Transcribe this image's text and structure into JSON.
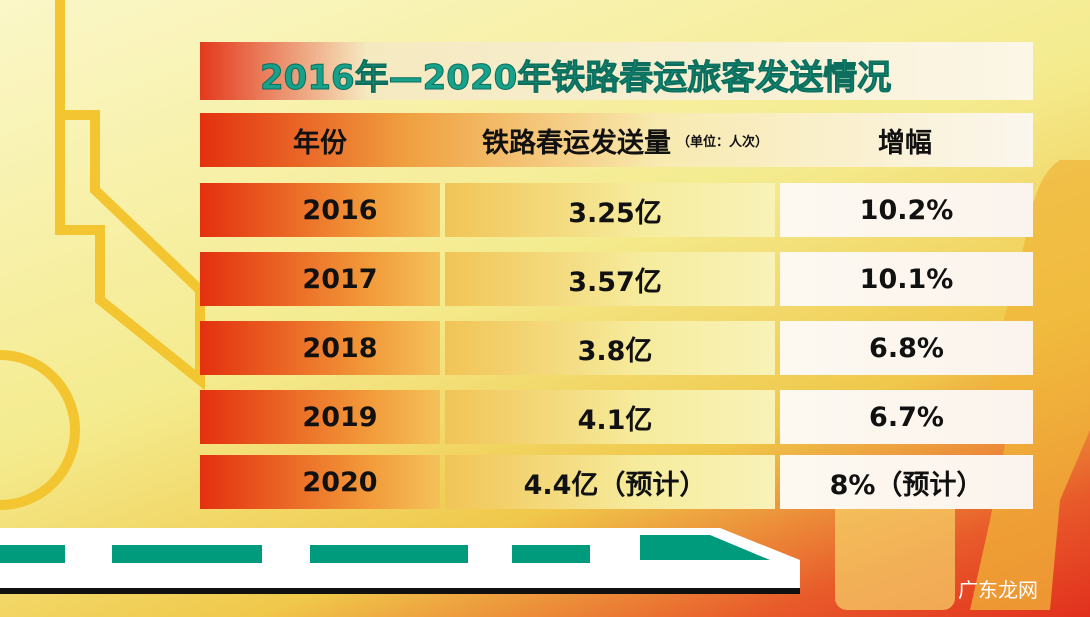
{
  "header": {
    "title": "2016年—2020年铁路春运旅客发送情况"
  },
  "table": {
    "columns": [
      "年份",
      "铁路春运发送量",
      "增幅"
    ],
    "unit_note": "（单位：人次）",
    "rows": [
      [
        "2016",
        "3.25亿",
        "10.2%"
      ],
      [
        "2017",
        "3.57亿",
        "10.1%"
      ],
      [
        "2018",
        "3.8亿",
        "6.8%"
      ],
      [
        "2019",
        "4.1亿",
        "6.7%"
      ],
      [
        "2020",
        "4.4亿（预计）",
        "8%（预计）"
      ]
    ]
  },
  "watermark": "广东龙网"
}
